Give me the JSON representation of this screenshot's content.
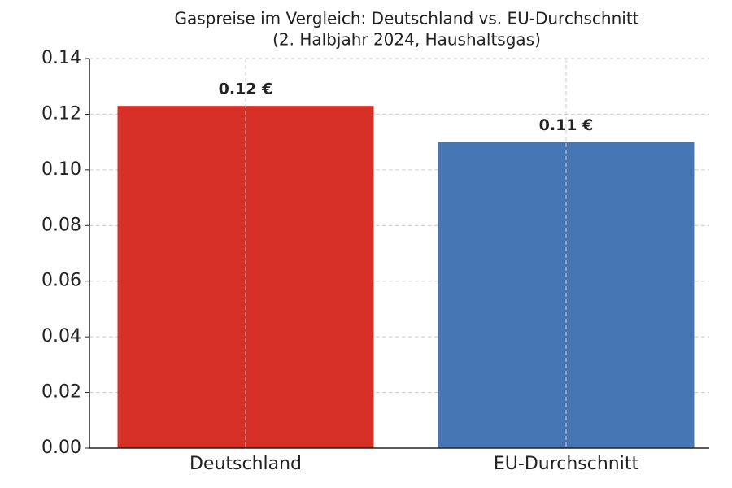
{
  "chart_data": {
    "type": "bar",
    "title": "Gaspreise im Vergleich: Deutschland vs. EU-Durchschnitt",
    "subtitle": "(2. Halbjahr 2024, Haushaltsgas)",
    "categories": [
      "Deutschland",
      "EU-Durchschnitt"
    ],
    "values": [
      0.123,
      0.11
    ],
    "value_labels": [
      "0.12 €",
      "0.11 €"
    ],
    "colors": [
      "#d62f26",
      "#4776b4"
    ],
    "ylim": [
      0,
      0.14
    ],
    "yticks": [
      {
        "value": 0,
        "label": "0.00"
      },
      {
        "value": 0.02,
        "label": "0.02"
      },
      {
        "value": 0.04,
        "label": "0.04"
      },
      {
        "value": 0.06,
        "label": "0.06"
      },
      {
        "value": 0.08,
        "label": "0.08"
      },
      {
        "value": 0.1,
        "label": "0.10"
      },
      {
        "value": 0.12,
        "label": "0.12"
      },
      {
        "value": 0.14,
        "label": "0.14"
      }
    ],
    "grid": true
  }
}
